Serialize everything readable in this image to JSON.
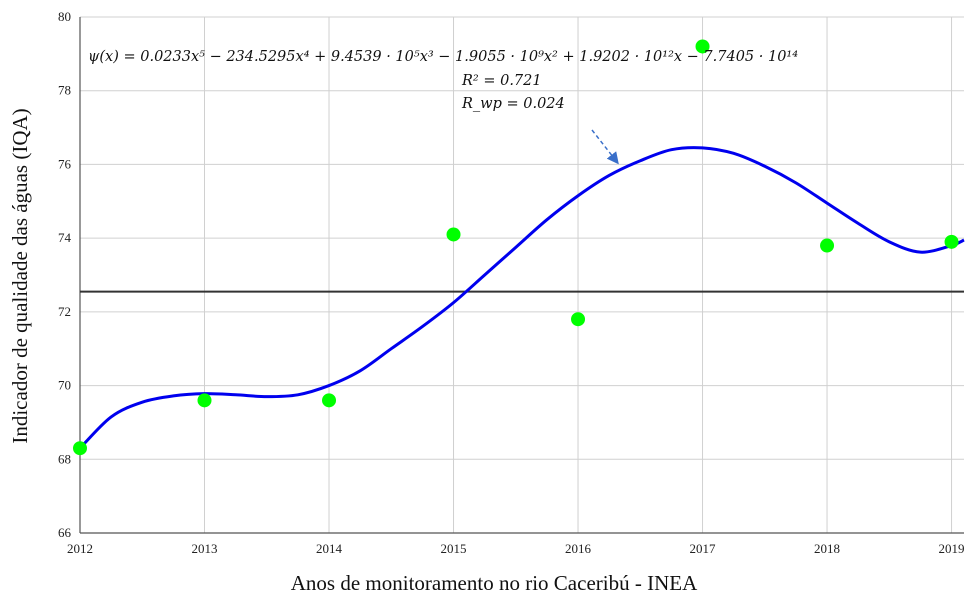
{
  "chart_data": {
    "type": "scatter",
    "xlabel": "Anos de monitoramento no rio Caceribú - INEA",
    "ylabel": "Indicador de qualidade das águas (IQA)",
    "x_ticks": [
      "2012",
      "2013",
      "2014",
      "2015",
      "2016",
      "2017",
      "2018",
      "2019"
    ],
    "y_ticks": [
      "66",
      "68",
      "70",
      "72",
      "74",
      "76",
      "78",
      "80"
    ],
    "xlim": [
      2012,
      2019.1
    ],
    "ylim": [
      66,
      80
    ],
    "grid": true,
    "points": {
      "color": "#00ff00",
      "x": [
        2012,
        2013,
        2014,
        2015,
        2016,
        2017,
        2018,
        2019
      ],
      "y": [
        68.3,
        69.6,
        69.6,
        74.1,
        71.8,
        79.2,
        73.8,
        73.9
      ]
    },
    "mean_line": {
      "y": 72.55,
      "color": "#333333"
    },
    "fit_curve": {
      "color": "#0000ee",
      "x": [
        2012,
        2012.25,
        2012.5,
        2012.75,
        2013,
        2013.25,
        2013.5,
        2013.75,
        2014,
        2014.25,
        2014.5,
        2014.75,
        2015,
        2015.25,
        2015.5,
        2015.75,
        2016,
        2016.25,
        2016.5,
        2016.75,
        2017,
        2017.25,
        2017.5,
        2017.75,
        2018,
        2018.25,
        2018.5,
        2018.75,
        2019,
        2019.1
      ],
      "y": [
        68.3,
        69.15,
        69.55,
        69.72,
        69.78,
        69.75,
        69.7,
        69.75,
        70.0,
        70.4,
        71.0,
        71.6,
        72.25,
        73.0,
        73.75,
        74.5,
        75.15,
        75.7,
        76.1,
        76.4,
        76.45,
        76.3,
        75.95,
        75.5,
        74.95,
        74.4,
        73.9,
        73.62,
        73.8,
        73.95
      ]
    },
    "annotations": {
      "equation": "ψ(x) = 0.0233x⁵ − 234.5295x⁴ + 9.4539 · 10⁵x³ − 1.9055 · 10⁹x² + 1.9202 · 10¹²x − 7.7405 · 10¹⁴",
      "r2": "R² = 0.721",
      "rwp": "R_wp = 0.024"
    }
  }
}
